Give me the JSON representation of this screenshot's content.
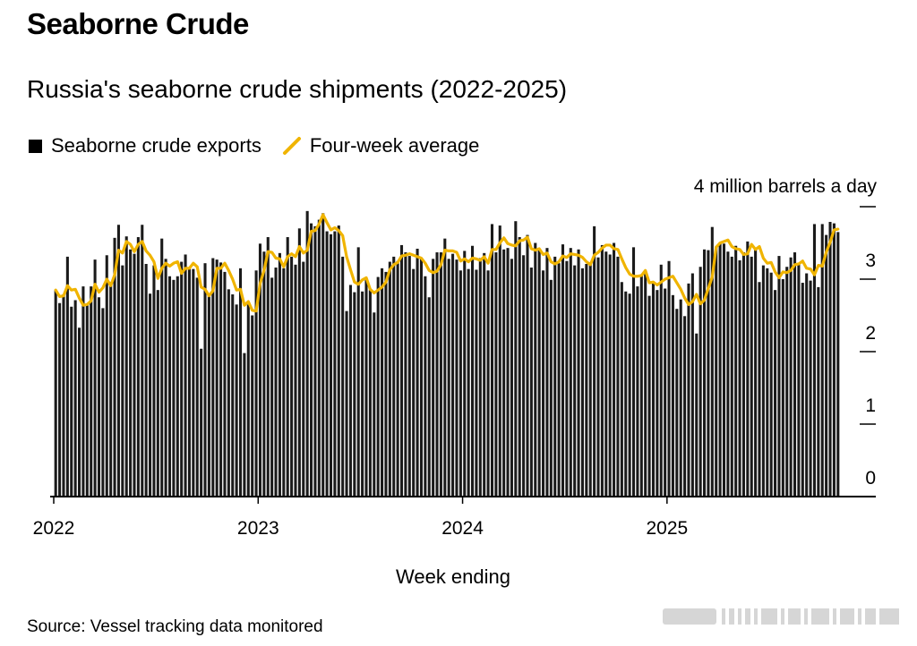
{
  "title": "Seaborne Crude",
  "subtitle": "Russia's seaborne crude shipments (2022-2025)",
  "legend": {
    "bars": "Seaborne crude exports",
    "line": "Four-week average"
  },
  "source": "Source: Vessel tracking data monitored",
  "colors": {
    "bars": "#1a1a1a",
    "line": "#f0b400",
    "axis": "#000000"
  },
  "chart_data": {
    "type": "bar",
    "title": "Russia's seaborne crude shipments (2022-2025)",
    "xlabel": "Week ending",
    "ylabel": "4 million barrels a day",
    "ylim": [
      0,
      4
    ],
    "y_ticks": [
      "0",
      "1",
      "2",
      "3",
      "4 million barrels a day"
    ],
    "x_ticks": [
      "2022",
      "2023",
      "2024",
      "2025"
    ],
    "grid": false,
    "legend_position": "top-left",
    "series": [
      {
        "name": "Seaborne crude exports",
        "type": "bar",
        "values": [
          2.85,
          2.67,
          2.79,
          3.31,
          2.62,
          2.71,
          2.33,
          2.9,
          2.65,
          2.9,
          3.27,
          2.75,
          2.6,
          3.33,
          2.96,
          3.57,
          3.75,
          3.19,
          3.59,
          3.41,
          3.35,
          3.58,
          3.75,
          3.21,
          2.8,
          3.19,
          2.85,
          3.56,
          3.28,
          3.04,
          2.99,
          3.04,
          3.24,
          3.34,
          3.16,
          3.14,
          3.02,
          2.04,
          3.22,
          2.8,
          3.29,
          3.27,
          3.23,
          3.1,
          2.86,
          2.79,
          2.65,
          3.15,
          1.98,
          2.65,
          2.5,
          3.12,
          3.49,
          3.38,
          3.58,
          3.02,
          3.16,
          3.36,
          3.15,
          3.58,
          3.31,
          3.2,
          3.7,
          3.24,
          3.94,
          3.77,
          3.73,
          3.82,
          3.91,
          3.66,
          3.62,
          3.66,
          3.74,
          3.31,
          2.56,
          2.92,
          2.82,
          3.44,
          2.83,
          2.99,
          2.85,
          2.54,
          3.03,
          3.15,
          3.1,
          3.24,
          3.31,
          3.25,
          3.47,
          3.37,
          3.32,
          3.14,
          3.42,
          3.29,
          3.04,
          2.75,
          3.28,
          3.37,
          3.37,
          3.56,
          3.28,
          3.35,
          3.27,
          3.12,
          3.39,
          3.14,
          3.46,
          3.13,
          3.29,
          3.36,
          3.12,
          3.76,
          3.37,
          3.74,
          3.41,
          3.43,
          3.28,
          3.8,
          3.58,
          3.33,
          3.61,
          3.16,
          3.5,
          3.41,
          3.12,
          3.43,
          2.99,
          3.31,
          3.22,
          3.48,
          3.25,
          3.43,
          3.19,
          3.41,
          3.15,
          3.21,
          3.23,
          3.73,
          3.3,
          3.47,
          3.38,
          3.34,
          3.5,
          3.31,
          2.96,
          2.83,
          2.8,
          3.44,
          2.9,
          3.05,
          3.07,
          2.77,
          2.97,
          2.85,
          3.2,
          2.87,
          3.25,
          2.78,
          2.59,
          2.72,
          2.49,
          2.94,
          3.08,
          2.25,
          3.17,
          3.41,
          3.4,
          3.72,
          3.45,
          3.5,
          3.49,
          3.38,
          3.31,
          3.46,
          3.26,
          3.37,
          3.52,
          3.31,
          3.42,
          2.96,
          3.19,
          3.15,
          3.09,
          2.85,
          3.32,
          3.0,
          3.17,
          3.3,
          3.37,
          3.21,
          2.95,
          3.08,
          2.98,
          3.76,
          2.89,
          3.76,
          3.61,
          3.79,
          3.77,
          3.65
        ],
        "color": "#1a1a1a"
      },
      {
        "name": "Four-week average",
        "type": "line",
        "values": [
          2.85,
          2.76,
          2.77,
          2.91,
          2.85,
          2.86,
          2.74,
          2.64,
          2.65,
          2.7,
          2.93,
          2.82,
          2.88,
          3.0,
          2.91,
          3.06,
          3.4,
          3.36,
          3.52,
          3.48,
          3.38,
          3.48,
          3.52,
          3.39,
          3.33,
          3.24,
          3.01,
          3.15,
          3.22,
          3.18,
          3.22,
          3.24,
          3.08,
          3.15,
          3.15,
          3.22,
          3.17,
          2.89,
          2.86,
          2.77,
          2.84,
          3.15,
          3.15,
          3.22,
          3.12,
          3.0,
          2.85,
          2.86,
          2.64,
          2.69,
          2.57,
          2.56,
          2.94,
          3.12,
          3.38,
          3.37,
          3.29,
          3.28,
          3.17,
          3.31,
          3.35,
          3.31,
          3.45,
          3.36,
          3.4,
          3.66,
          3.67,
          3.76,
          3.89,
          3.78,
          3.68,
          3.71,
          3.67,
          3.6,
          3.31,
          3.13,
          2.96,
          2.93,
          2.99,
          3.02,
          2.86,
          2.81,
          2.85,
          2.89,
          2.96,
          3.13,
          3.2,
          3.23,
          3.32,
          3.33,
          3.35,
          3.33,
          3.31,
          3.29,
          3.22,
          3.12,
          3.09,
          3.11,
          3.2,
          3.4,
          3.39,
          3.39,
          3.37,
          3.25,
          3.28,
          3.24,
          3.29,
          3.28,
          3.26,
          3.31,
          3.22,
          3.41,
          3.41,
          3.5,
          3.57,
          3.49,
          3.47,
          3.46,
          3.53,
          3.54,
          3.58,
          3.42,
          3.4,
          3.42,
          3.34,
          3.36,
          3.24,
          3.21,
          3.24,
          3.32,
          3.3,
          3.35,
          3.34,
          3.33,
          3.3,
          3.24,
          3.2,
          3.33,
          3.37,
          3.43,
          3.47,
          3.47,
          3.42,
          3.41,
          3.28,
          3.16,
          3.07,
          3.04,
          3.04,
          3.05,
          3.12,
          2.95,
          2.96,
          2.92,
          2.96,
          3.0,
          3.02,
          3.04,
          2.95,
          2.86,
          2.74,
          2.65,
          2.69,
          2.79,
          2.66,
          2.71,
          2.87,
          3.03,
          3.44,
          3.5,
          3.52,
          3.54,
          3.45,
          3.42,
          3.41,
          3.34,
          3.35,
          3.48,
          3.41,
          3.45,
          3.29,
          3.22,
          3.23,
          3.1,
          3.02,
          3.1,
          3.09,
          3.12,
          3.2,
          3.21,
          3.25,
          3.15,
          3.14,
          3.06,
          3.19,
          3.18,
          3.37,
          3.51,
          3.68,
          3.69
        ],
        "color": "#f0b400"
      }
    ]
  }
}
